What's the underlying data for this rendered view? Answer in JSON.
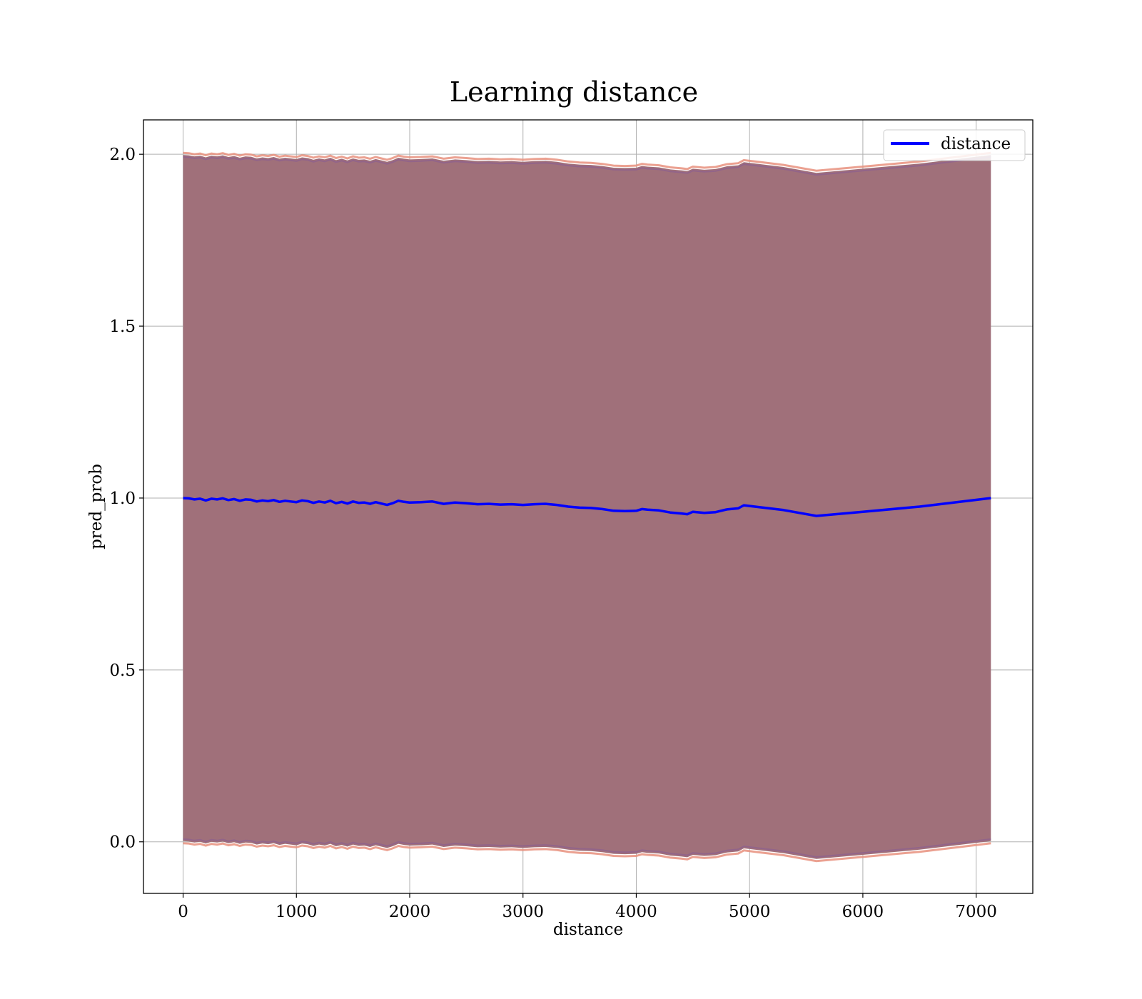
{
  "chart_data": {
    "type": "line",
    "title": "Learning distance",
    "xlabel": "distance",
    "ylabel": "pred_prob",
    "xlim": [
      -350,
      7500
    ],
    "ylim": [
      -0.15,
      2.1
    ],
    "xticks": [
      0,
      1000,
      2000,
      3000,
      4000,
      5000,
      6000,
      7000
    ],
    "yticks": [
      0.0,
      0.5,
      1.0,
      1.5,
      2.0
    ],
    "xtick_labels": [
      "0",
      "1000",
      "2000",
      "3000",
      "4000",
      "5000",
      "6000",
      "7000"
    ],
    "ytick_labels": [
      "0.0",
      "0.5",
      "1.0",
      "1.5",
      "2.0"
    ],
    "grid": true,
    "legend": {
      "position": "top-right",
      "entries": [
        "distance"
      ]
    },
    "colors": {
      "line": "#0000ff",
      "band_fill": "#a0707a",
      "band_edge_outer": "#e8907e",
      "band_edge_inner": "#8c6090",
      "grid": "#b0b0b0"
    },
    "series": [
      {
        "name": "distance",
        "x": [
          0,
          50,
          100,
          150,
          200,
          250,
          300,
          350,
          400,
          450,
          500,
          550,
          600,
          650,
          700,
          750,
          800,
          850,
          900,
          950,
          1000,
          1050,
          1100,
          1150,
          1200,
          1250,
          1300,
          1350,
          1400,
          1450,
          1500,
          1550,
          1600,
          1650,
          1700,
          1750,
          1800,
          1850,
          1900,
          1950,
          2000,
          2100,
          2200,
          2300,
          2400,
          2500,
          2600,
          2700,
          2800,
          2900,
          3000,
          3100,
          3200,
          3300,
          3400,
          3500,
          3600,
          3700,
          3800,
          3900,
          4000,
          4050,
          4100,
          4200,
          4300,
          4400,
          4450,
          4500,
          4600,
          4700,
          4800,
          4900,
          4950,
          5100,
          5300,
          5590,
          6000,
          6500,
          7130
        ],
        "y": [
          1.0,
          0.999,
          0.996,
          0.998,
          0.993,
          0.998,
          0.996,
          0.999,
          0.994,
          0.997,
          0.992,
          0.996,
          0.995,
          0.99,
          0.993,
          0.991,
          0.994,
          0.989,
          0.992,
          0.99,
          0.988,
          0.993,
          0.991,
          0.986,
          0.99,
          0.987,
          0.992,
          0.985,
          0.989,
          0.984,
          0.99,
          0.986,
          0.987,
          0.983,
          0.988,
          0.984,
          0.98,
          0.985,
          0.992,
          0.989,
          0.987,
          0.988,
          0.99,
          0.983,
          0.987,
          0.985,
          0.982,
          0.983,
          0.981,
          0.982,
          0.98,
          0.982,
          0.983,
          0.98,
          0.975,
          0.972,
          0.971,
          0.968,
          0.963,
          0.962,
          0.963,
          0.968,
          0.966,
          0.964,
          0.958,
          0.955,
          0.953,
          0.96,
          0.957,
          0.959,
          0.967,
          0.97,
          0.979,
          0.973,
          0.965,
          0.948,
          0.96,
          0.975,
          1.0
        ],
        "band_upper": [
          1.998,
          1.997,
          1.994,
          1.996,
          1.991,
          1.996,
          1.994,
          1.997,
          1.992,
          1.995,
          1.99,
          1.994,
          1.993,
          1.988,
          1.991,
          1.989,
          1.992,
          1.987,
          1.99,
          1.988,
          1.986,
          1.991,
          1.989,
          1.984,
          1.988,
          1.985,
          1.99,
          1.983,
          1.987,
          1.982,
          1.988,
          1.984,
          1.985,
          1.981,
          1.986,
          1.982,
          1.978,
          1.983,
          1.99,
          1.987,
          1.985,
          1.986,
          1.988,
          1.981,
          1.985,
          1.983,
          1.98,
          1.981,
          1.979,
          1.98,
          1.978,
          1.98,
          1.981,
          1.978,
          1.973,
          1.97,
          1.969,
          1.966,
          1.961,
          1.96,
          1.961,
          1.966,
          1.964,
          1.962,
          1.956,
          1.953,
          1.951,
          1.958,
          1.955,
          1.957,
          1.965,
          1.968,
          1.977,
          1.971,
          1.963,
          1.946,
          1.958,
          1.973,
          1.998
        ],
        "band_lower": [
          0.002,
          0.001,
          -0.002,
          0.0,
          -0.005,
          0.0,
          -0.002,
          0.001,
          -0.004,
          -0.001,
          -0.006,
          -0.002,
          -0.003,
          -0.008,
          -0.005,
          -0.007,
          -0.004,
          -0.009,
          -0.006,
          -0.008,
          -0.01,
          -0.005,
          -0.007,
          -0.012,
          -0.008,
          -0.011,
          -0.006,
          -0.013,
          -0.009,
          -0.014,
          -0.008,
          -0.012,
          -0.011,
          -0.015,
          -0.01,
          -0.014,
          -0.018,
          -0.013,
          -0.006,
          -0.009,
          -0.011,
          -0.01,
          -0.008,
          -0.015,
          -0.011,
          -0.013,
          -0.016,
          -0.015,
          -0.017,
          -0.016,
          -0.018,
          -0.016,
          -0.015,
          -0.018,
          -0.023,
          -0.026,
          -0.027,
          -0.03,
          -0.035,
          -0.036,
          -0.035,
          -0.03,
          -0.032,
          -0.034,
          -0.04,
          -0.043,
          -0.045,
          -0.038,
          -0.041,
          -0.039,
          -0.031,
          -0.028,
          -0.019,
          -0.025,
          -0.033,
          -0.05,
          -0.038,
          -0.023,
          0.002
        ]
      }
    ]
  }
}
